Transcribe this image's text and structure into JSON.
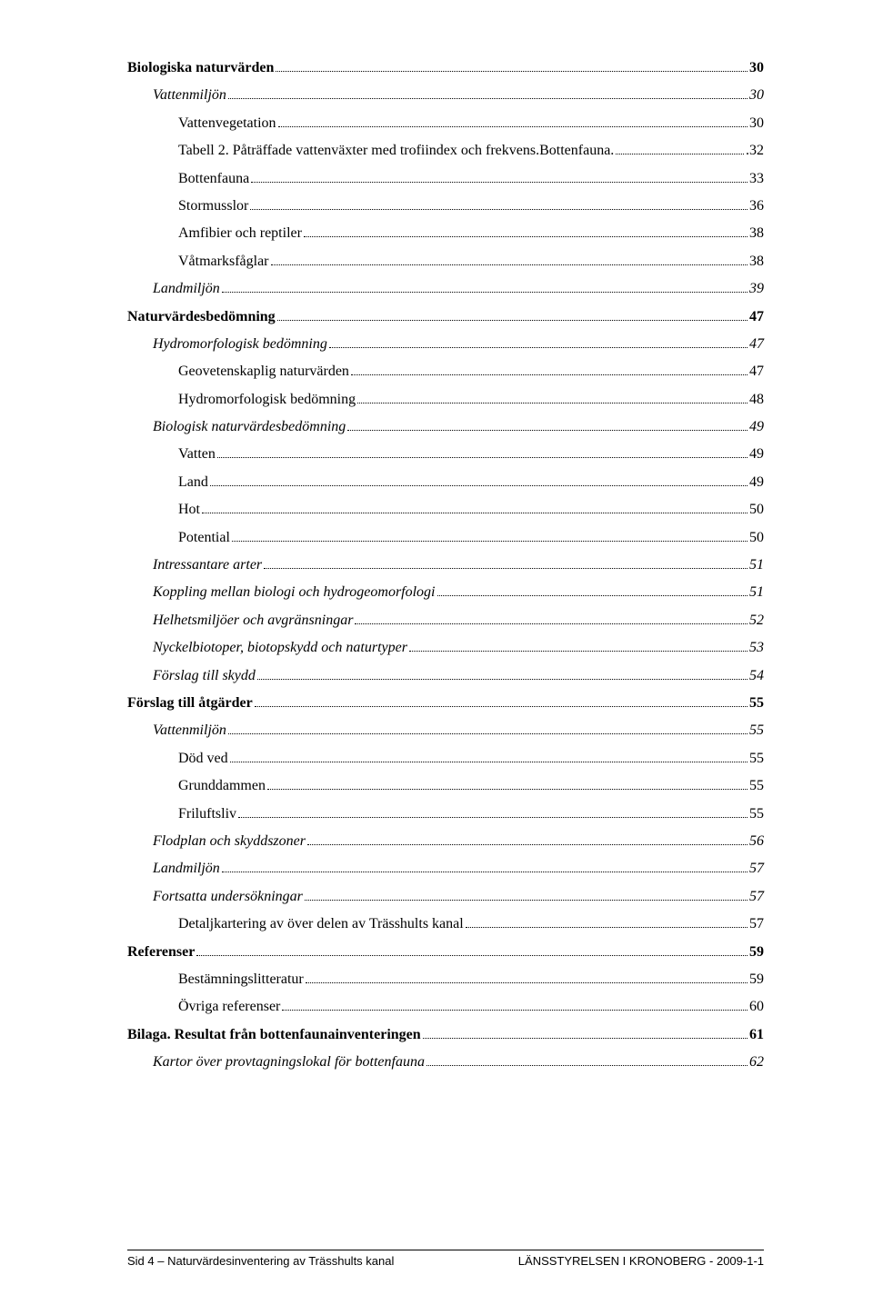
{
  "toc": [
    {
      "level": 0,
      "label": "Biologiska naturvärden",
      "page": "30"
    },
    {
      "level": 1,
      "label": "Vattenmiljön",
      "page": "30"
    },
    {
      "level": 2,
      "label": "Vattenvegetation",
      "page": "30"
    },
    {
      "level": 2,
      "label": "Tabell 2. Påträffade vattenväxter med trofiindex och frekvens.Bottenfauna.",
      "page": ".32"
    },
    {
      "level": 2,
      "label": "Bottenfauna",
      "page": "33"
    },
    {
      "level": 2,
      "label": "Stormusslor",
      "page": "36"
    },
    {
      "level": 2,
      "label": "Amfibier och reptiler",
      "page": "38"
    },
    {
      "level": 2,
      "label": "Våtmarksfåglar",
      "page": "38"
    },
    {
      "level": 1,
      "label": "Landmiljön",
      "page": "39"
    },
    {
      "level": 0,
      "label": "Naturvärdesbedömning",
      "page": "47"
    },
    {
      "level": 1,
      "label": "Hydromorfologisk bedömning",
      "page": "47"
    },
    {
      "level": 2,
      "label": "Geovetenskaplig naturvärden",
      "page": "47"
    },
    {
      "level": 2,
      "label": "Hydromorfologisk bedömning",
      "page": "48"
    },
    {
      "level": 1,
      "label": "Biologisk naturvärdesbedömning",
      "page": "49"
    },
    {
      "level": 2,
      "label": "Vatten",
      "page": "49"
    },
    {
      "level": 2,
      "label": "Land",
      "page": "49"
    },
    {
      "level": 2,
      "label": "Hot",
      "page": "50"
    },
    {
      "level": 2,
      "label": "Potential",
      "page": "50"
    },
    {
      "level": 1,
      "label": "Intressantare arter",
      "page": "51"
    },
    {
      "level": 1,
      "label": "Koppling mellan biologi och hydrogeomorfologi",
      "page": "51"
    },
    {
      "level": 1,
      "label": "Helhetsmiljöer och avgränsningar",
      "page": "52"
    },
    {
      "level": 1,
      "label": "Nyckelbiotoper, biotopskydd och naturtyper",
      "page": "53"
    },
    {
      "level": 1,
      "label": "Förslag till skydd",
      "page": "54"
    },
    {
      "level": 0,
      "label": "Förslag till åtgärder",
      "page": "55"
    },
    {
      "level": 1,
      "label": "Vattenmiljön",
      "page": "55"
    },
    {
      "level": 2,
      "label": "Död ved",
      "page": "55"
    },
    {
      "level": 2,
      "label": "Grunddammen",
      "page": "55"
    },
    {
      "level": 2,
      "label": "Friluftsliv",
      "page": "55"
    },
    {
      "level": 1,
      "label": "Flodplan och skyddszoner",
      "page": "56"
    },
    {
      "level": 1,
      "label": "Landmiljön",
      "page": "57"
    },
    {
      "level": 1,
      "label": "Fortsatta undersökningar",
      "page": "57"
    },
    {
      "level": 2,
      "label": "Detaljkartering av över delen av Trässhults kanal",
      "page": "57"
    },
    {
      "level": 0,
      "label": "Referenser",
      "page": "59"
    },
    {
      "level": 2,
      "label": "Bestämningslitteratur",
      "page": "59"
    },
    {
      "level": 2,
      "label": "Övriga referenser",
      "page": "60"
    },
    {
      "level": 0,
      "label": "Bilaga. Resultat från bottenfaunainventeringen",
      "page": "61"
    },
    {
      "level": 1,
      "label": "Kartor över provtagningslokal för bottenfauna",
      "page": "62"
    }
  ],
  "footer": {
    "left": "Sid 4 – Naturvärdesinventering av Trässhults kanal",
    "right": "LÄNSSTYRELSEN I KRONOBERG - 2009-1-1"
  }
}
